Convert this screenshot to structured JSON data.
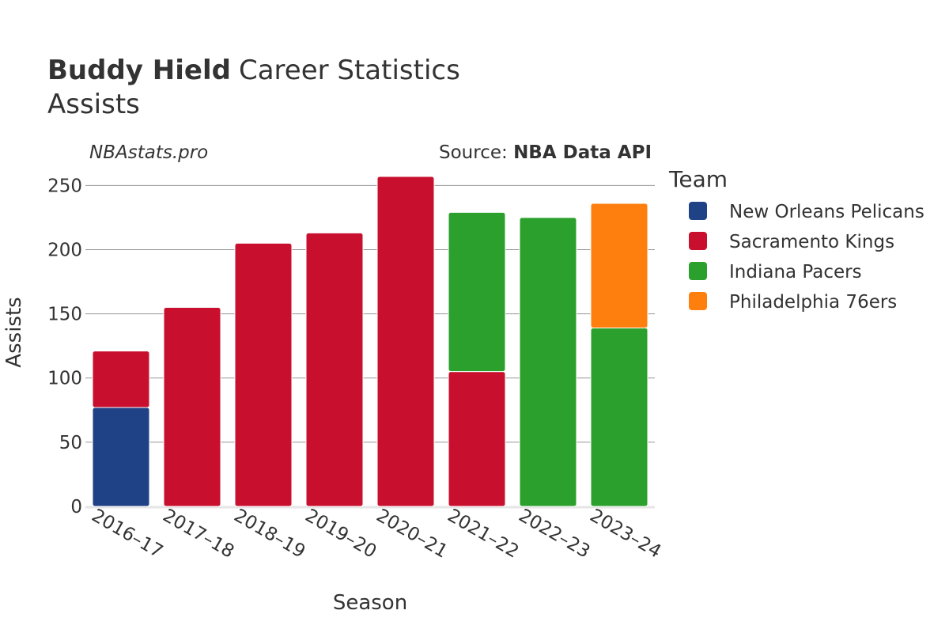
{
  "header": {
    "title_bold": "Buddy Hield",
    "title_rest": "Career Statistics",
    "subtitle": "Assists",
    "watermark": "NBAstats.pro",
    "source_prefix": "Source: ",
    "source_name": "NBA Data API"
  },
  "legend": {
    "title": "Team"
  },
  "chart_data": {
    "type": "bar",
    "stacked": true,
    "title": "Buddy Hield Career Statistics",
    "subtitle": "Assists",
    "xlabel": "Season",
    "ylabel": "Assists",
    "ylim": [
      0,
      265
    ],
    "yticks": [
      0,
      50,
      100,
      150,
      200,
      250
    ],
    "grid": true,
    "legend_position": "right",
    "categories": [
      "2016–17",
      "2017–18",
      "2018–19",
      "2019–20",
      "2020–21",
      "2021–22",
      "2022–23",
      "2023–24"
    ],
    "series": [
      {
        "name": "New Orleans Pelicans",
        "color": "#1f4287",
        "values": [
          77,
          0,
          0,
          0,
          0,
          0,
          0,
          0
        ]
      },
      {
        "name": "Sacramento Kings",
        "color": "#c8102e",
        "values": [
          44,
          155,
          205,
          213,
          257,
          105,
          0,
          0
        ]
      },
      {
        "name": "Indiana Pacers",
        "color": "#2ca02c",
        "values": [
          0,
          0,
          0,
          0,
          0,
          124,
          225,
          139
        ]
      },
      {
        "name": "Philadelphia 76ers",
        "color": "#ff7f0e",
        "values": [
          0,
          0,
          0,
          0,
          0,
          0,
          0,
          97
        ]
      }
    ]
  }
}
